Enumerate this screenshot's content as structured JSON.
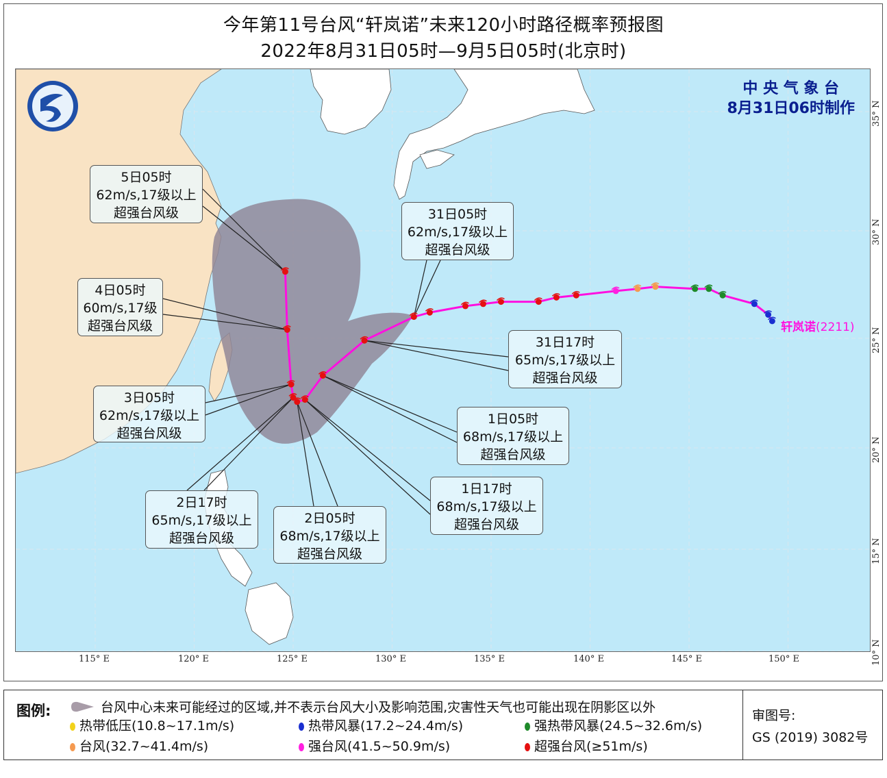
{
  "header": {
    "title": "今年第11号台风“轩岚诺”未来120小时路径概率预报图",
    "subtitle": "2022年8月31日05时—9月5日05时(北京时)"
  },
  "agency": {
    "name": "中 央 气 象 台",
    "issued": "8月31日06时制作"
  },
  "typhoon": {
    "name": "轩岚诺",
    "code": "(2211)"
  },
  "axes": {
    "lon_labels": [
      "115° E",
      "120° E",
      "125° E",
      "130° E",
      "135° E",
      "140° E",
      "145° E",
      "150° E"
    ],
    "lat_labels": [
      "35° N",
      "30° N",
      "25° N",
      "20° N",
      "15° N",
      "10° N"
    ]
  },
  "colors": {
    "ocean": "#bfe9f9",
    "land": "#f9e3c4",
    "cone": "#8f8596",
    "track": "#ff10e0",
    "tropical_depression": "#f2d21a",
    "tropical_storm": "#1a2fd0",
    "severe_tropical_storm": "#1f8a2a",
    "typhoon": "#f59a50",
    "severe_typhoon": "#ff20e0",
    "super_typhoon": "#e51010"
  },
  "past_track": [
    {
      "lon": 131.9,
      "lat": 26.2,
      "cat": "super_typhoon"
    },
    {
      "lon": 133.7,
      "lat": 26.5,
      "cat": "super_typhoon"
    },
    {
      "lon": 134.6,
      "lat": 26.6,
      "cat": "super_typhoon"
    },
    {
      "lon": 135.5,
      "lat": 26.7,
      "cat": "super_typhoon"
    },
    {
      "lon": 137.4,
      "lat": 26.7,
      "cat": "super_typhoon"
    },
    {
      "lon": 138.3,
      "lat": 26.9,
      "cat": "super_typhoon"
    },
    {
      "lon": 139.3,
      "lat": 27.0,
      "cat": "super_typhoon"
    },
    {
      "lon": 141.3,
      "lat": 27.2,
      "cat": "severe_typhoon"
    },
    {
      "lon": 142.4,
      "lat": 27.3,
      "cat": "typhoon"
    },
    {
      "lon": 143.3,
      "lat": 27.4,
      "cat": "typhoon"
    },
    {
      "lon": 145.3,
      "lat": 27.3,
      "cat": "severe_tropical_storm"
    },
    {
      "lon": 146.0,
      "lat": 27.3,
      "cat": "severe_tropical_storm"
    },
    {
      "lon": 146.7,
      "lat": 27.0,
      "cat": "severe_tropical_storm"
    },
    {
      "lon": 148.3,
      "lat": 26.6,
      "cat": "tropical_storm"
    },
    {
      "lon": 149.0,
      "lat": 26.1,
      "cat": "tropical_storm"
    },
    {
      "lon": 149.2,
      "lat": 25.8,
      "cat": "tropical_storm"
    }
  ],
  "forecast": [
    {
      "time": "31日05时",
      "wind": "62m/s,17级以上",
      "grade": "超强台风级",
      "lon": 131.1,
      "lat": 26.0
    },
    {
      "time": "31日17时",
      "wind": "65m/s,17级以上",
      "grade": "超强台风级",
      "lon": 128.6,
      "lat": 24.9
    },
    {
      "time": "1日05时",
      "wind": "68m/s,17级以上",
      "grade": "超强台风级",
      "lon": 126.5,
      "lat": 23.3
    },
    {
      "time": "1日17时",
      "wind": "68m/s,17级以上",
      "grade": "超强台风级",
      "lon": 125.6,
      "lat": 22.2
    },
    {
      "time": "2日05时",
      "wind": "68m/s,17级以上",
      "grade": "超强台风级",
      "lon": 125.2,
      "lat": 22.1
    },
    {
      "time": "2日17时",
      "wind": "65m/s,17级以上",
      "grade": "超强台风级",
      "lon": 125.0,
      "lat": 22.3
    },
    {
      "time": "3日05时",
      "wind": "62m/s,17级以上",
      "grade": "超强台风级",
      "lon": 124.9,
      "lat": 22.9
    },
    {
      "time": "4日05时",
      "wind": "60m/s,17级",
      "grade": "超强台风级",
      "lon": 124.7,
      "lat": 25.4
    },
    {
      "time": "5日05时",
      "wind": "62m/s,17级以上",
      "grade": "超强台风级",
      "lon": 124.6,
      "lat": 28.1
    }
  ],
  "legend": {
    "label": "图例:",
    "cone_text": "台风中心未来可能经过的区域,并不表示台风大小及影响范围,灾害性天气也可能出现在阴影区以外",
    "items": [
      {
        "text": "热带低压(10.8~17.1m/s)",
        "cat": "tropical_depression"
      },
      {
        "text": "热带风暴(17.2~24.4m/s)",
        "cat": "tropical_storm"
      },
      {
        "text": "强热带风暴(24.5~32.6m/s)",
        "cat": "severe_tropical_storm"
      },
      {
        "text": "台风(32.7~41.4m/s)",
        "cat": "typhoon"
      },
      {
        "text": "强台风(41.5~50.9m/s)",
        "cat": "severe_typhoon"
      },
      {
        "text": "超强台风(≥51m/s)",
        "cat": "super_typhoon"
      }
    ],
    "approval_label": "审图号:",
    "approval_number": "GS (2019) 3082号"
  }
}
